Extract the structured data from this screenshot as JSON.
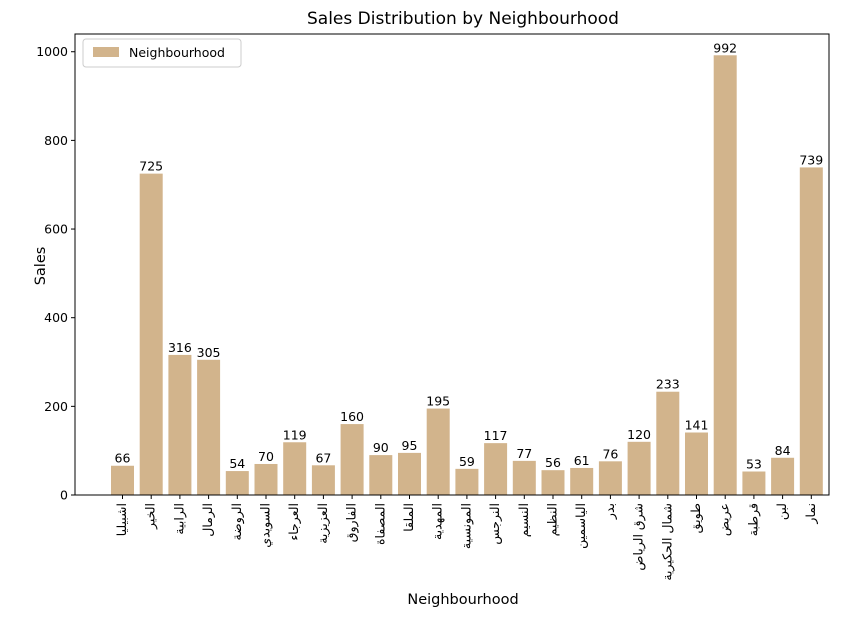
{
  "chart_data": {
    "type": "bar",
    "title": "Sales Distribution by Neighbourhood",
    "xlabel": "Neighbourhood",
    "ylabel": "Sales",
    "ylim": [
      0,
      1040
    ],
    "yticks": [
      0,
      200,
      400,
      600,
      800,
      1000
    ],
    "legend": {
      "position": "top-left",
      "entries": [
        "Neighbourhood"
      ]
    },
    "grid": false,
    "bar_color": "#D2B48C",
    "categories": [
      "اشبيليا",
      "الخير",
      "الرابية",
      "الرمال",
      "الروضة",
      "السويدي",
      "العرجاء",
      "العزيزية",
      "الفاروق",
      "المصفاة",
      "الملقا",
      "المهدية",
      "المونسية",
      "النرجس",
      "النسيم",
      "النظيم",
      "الياسمين",
      "بدر",
      "شرق الرياض",
      "شمال الحكيرية",
      "طويق",
      "عريض",
      "قرطبة",
      "لبن",
      "نمار"
    ],
    "series": [
      {
        "name": "Neighbourhood",
        "values": [
          66,
          725,
          316,
          305,
          54,
          70,
          119,
          67,
          160,
          90,
          95,
          195,
          59,
          117,
          77,
          56,
          61,
          76,
          120,
          233,
          141,
          992,
          53,
          84,
          739
        ]
      }
    ]
  }
}
